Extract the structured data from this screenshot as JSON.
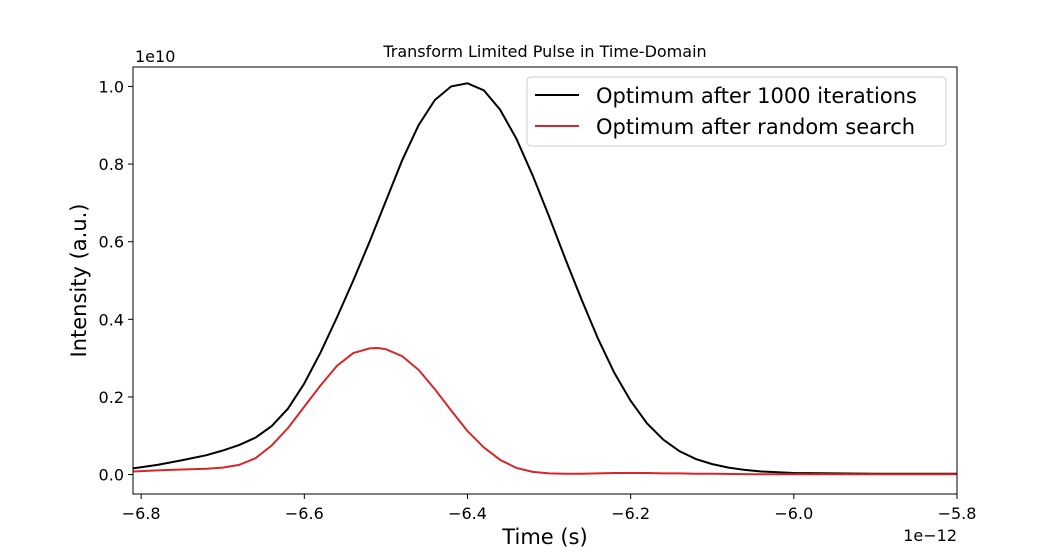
{
  "chart_data": {
    "type": "line",
    "title": "Transform Limited Pulse in Time-Domain",
    "xlabel": "Time (s)",
    "ylabel": "Intensity (a.u.)",
    "x_offset_text": "1e−12",
    "y_offset_text": "1e10",
    "xlim": [
      -6.81,
      -5.8
    ],
    "ylim": [
      -0.05,
      1.05
    ],
    "xticks": [
      -6.8,
      -6.6,
      -6.4,
      -6.2,
      -6.0,
      -5.8
    ],
    "xtick_labels": [
      "−6.8",
      "−6.6",
      "−6.4",
      "−6.2",
      "−6.0",
      "−5.8"
    ],
    "yticks": [
      0.0,
      0.2,
      0.4,
      0.6,
      0.8,
      1.0
    ],
    "ytick_labels": [
      "0.0",
      "0.2",
      "0.4",
      "0.6",
      "0.8",
      "1.0"
    ],
    "grid": false,
    "legend_position": "top-right",
    "series": [
      {
        "name": "Optimum after 1000 iterations",
        "color": "#000000",
        "x": [
          -6.81,
          -6.78,
          -6.75,
          -6.72,
          -6.7,
          -6.68,
          -6.66,
          -6.64,
          -6.62,
          -6.6,
          -6.58,
          -6.56,
          -6.54,
          -6.52,
          -6.5,
          -6.48,
          -6.46,
          -6.44,
          -6.42,
          -6.4,
          -6.38,
          -6.36,
          -6.34,
          -6.32,
          -6.3,
          -6.28,
          -6.26,
          -6.24,
          -6.22,
          -6.2,
          -6.18,
          -6.16,
          -6.14,
          -6.12,
          -6.1,
          -6.08,
          -6.06,
          -6.04,
          -6.02,
          -6.0,
          -5.95,
          -5.9,
          -5.85,
          -5.8
        ],
        "y": [
          0.016,
          0.025,
          0.037,
          0.05,
          0.062,
          0.076,
          0.095,
          0.125,
          0.17,
          0.235,
          0.315,
          0.405,
          0.5,
          0.6,
          0.705,
          0.81,
          0.9,
          0.965,
          1.0,
          1.008,
          0.99,
          0.94,
          0.865,
          0.77,
          0.665,
          0.555,
          0.45,
          0.35,
          0.262,
          0.19,
          0.132,
          0.09,
          0.06,
          0.04,
          0.027,
          0.018,
          0.012,
          0.008,
          0.006,
          0.004,
          0.003,
          0.002,
          0.002,
          0.002
        ]
      },
      {
        "name": "Optimum after random search",
        "color": "#d62728",
        "x": [
          -6.81,
          -6.78,
          -6.75,
          -6.72,
          -6.7,
          -6.68,
          -6.66,
          -6.64,
          -6.62,
          -6.6,
          -6.58,
          -6.56,
          -6.54,
          -6.52,
          -6.51,
          -6.5,
          -6.48,
          -6.46,
          -6.44,
          -6.42,
          -6.4,
          -6.38,
          -6.36,
          -6.34,
          -6.32,
          -6.3,
          -6.28,
          -6.26,
          -6.24,
          -6.22,
          -6.2,
          -6.18,
          -6.16,
          -6.14,
          -6.12,
          -6.1,
          -6.05,
          -6.0,
          -5.95,
          -5.9,
          -5.85,
          -5.8
        ],
        "y": [
          0.008,
          0.011,
          0.013,
          0.015,
          0.018,
          0.025,
          0.042,
          0.075,
          0.12,
          0.175,
          0.23,
          0.28,
          0.313,
          0.325,
          0.326,
          0.323,
          0.305,
          0.27,
          0.22,
          0.165,
          0.112,
          0.07,
          0.038,
          0.017,
          0.007,
          0.003,
          0.002,
          0.002,
          0.003,
          0.004,
          0.004,
          0.004,
          0.003,
          0.003,
          0.002,
          0.002,
          0.001,
          0.001,
          0.001,
          0.001,
          0.001,
          0.001
        ]
      }
    ]
  }
}
